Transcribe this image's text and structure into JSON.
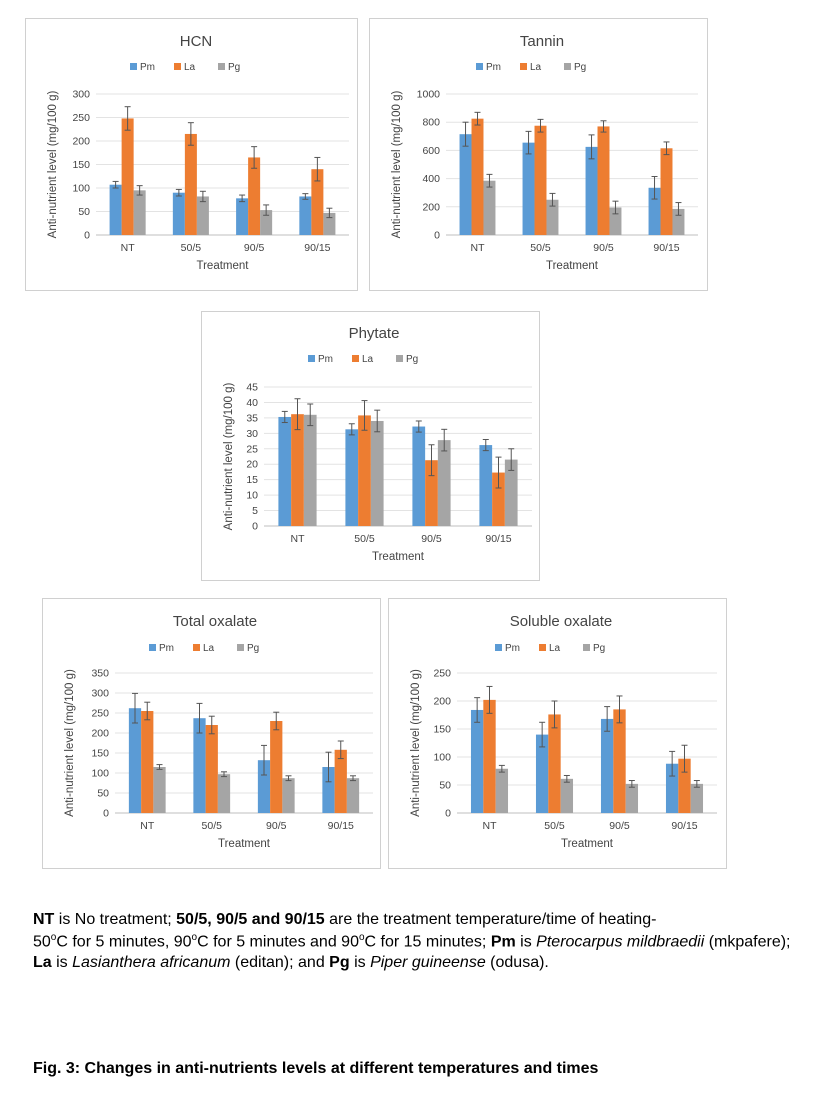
{
  "chart_data": [
    {
      "type": "bar",
      "title": "HCN",
      "xlabel": "Treatment",
      "ylabel": "Anti-nutrient level (mg/100 g)",
      "ylim": [
        0,
        300
      ],
      "yticks": [
        0,
        50,
        100,
        150,
        200,
        250,
        300
      ],
      "categories": [
        "NT",
        "50/5",
        "90/5",
        "90/15"
      ],
      "legend": "top",
      "series": [
        {
          "name": "Pm",
          "values": [
            107,
            90,
            78,
            82
          ],
          "errors": [
            7,
            7,
            7,
            6
          ]
        },
        {
          "name": "La",
          "values": [
            248,
            215,
            165,
            140
          ],
          "errors": [
            25,
            24,
            23,
            25
          ]
        },
        {
          "name": "Pg",
          "values": [
            95,
            82,
            53,
            47
          ],
          "errors": [
            10,
            11,
            11,
            10
          ]
        }
      ]
    },
    {
      "type": "bar",
      "title": "Tannin",
      "xlabel": "Treatment",
      "ylabel": "Anti-nutrient level (mg/100 g)",
      "ylim": [
        0,
        1000
      ],
      "yticks": [
        0,
        200,
        400,
        600,
        800,
        1000
      ],
      "categories": [
        "NT",
        "50/5",
        "90/5",
        "90/15"
      ],
      "legend": "top",
      "series": [
        {
          "name": "Pm",
          "values": [
            715,
            655,
            625,
            335
          ],
          "errors": [
            85,
            80,
            85,
            80
          ]
        },
        {
          "name": "La",
          "values": [
            825,
            775,
            770,
            615
          ],
          "errors": [
            45,
            45,
            40,
            45
          ]
        },
        {
          "name": "Pg",
          "values": [
            385,
            250,
            195,
            185
          ],
          "errors": [
            45,
            45,
            45,
            45
          ]
        }
      ]
    },
    {
      "type": "bar",
      "title": "Phytate",
      "xlabel": "Treatment",
      "ylabel": "Anti-nutrient level (mg/100 g)",
      "ylim": [
        0,
        45
      ],
      "yticks": [
        0,
        5,
        10,
        15,
        20,
        25,
        30,
        35,
        40,
        45
      ],
      "categories": [
        "NT",
        "50/5",
        "90/5",
        "90/15"
      ],
      "legend": "top",
      "series": [
        {
          "name": "Pm",
          "values": [
            35.3,
            31.3,
            32.2,
            26.2
          ],
          "errors": [
            1.8,
            1.8,
            1.8,
            1.8
          ]
        },
        {
          "name": "La",
          "values": [
            36.2,
            35.8,
            21.3,
            17.3
          ],
          "errors": [
            5,
            4.8,
            5,
            5
          ]
        },
        {
          "name": "Pg",
          "values": [
            36,
            34,
            27.8,
            21.5
          ],
          "errors": [
            3.5,
            3.5,
            3.5,
            3.5
          ]
        }
      ]
    },
    {
      "type": "bar",
      "title": "Total oxalate",
      "xlabel": "Treatment",
      "ylabel": "Anti-nutrient level (mg/100 g)",
      "ylim": [
        0,
        350
      ],
      "yticks": [
        0,
        50,
        100,
        150,
        200,
        250,
        300,
        350
      ],
      "categories": [
        "NT",
        "50/5",
        "90/5",
        "90/15"
      ],
      "legend": "top",
      "series": [
        {
          "name": "Pm",
          "values": [
            262,
            237,
            132,
            115
          ],
          "errors": [
            37,
            37,
            37,
            37
          ]
        },
        {
          "name": "La",
          "values": [
            255,
            220,
            230,
            158
          ],
          "errors": [
            22,
            22,
            22,
            22
          ]
        },
        {
          "name": "Pg",
          "values": [
            115,
            97,
            87,
            87
          ],
          "errors": [
            6,
            6,
            6,
            6
          ]
        }
      ]
    },
    {
      "type": "bar",
      "title": "Soluble oxalate",
      "xlabel": "Treatment",
      "ylabel": "Anti-nutrient level (mg/100 g)",
      "ylim": [
        0,
        250
      ],
      "yticks": [
        0,
        50,
        100,
        150,
        200,
        250
      ],
      "categories": [
        "NT",
        "50/5",
        "90/5",
        "90/15"
      ],
      "legend": "top",
      "series": [
        {
          "name": "Pm",
          "values": [
            184,
            140,
            168,
            88
          ],
          "errors": [
            22,
            22,
            22,
            22
          ]
        },
        {
          "name": "La",
          "values": [
            202,
            176,
            185,
            97
          ],
          "errors": [
            24,
            24,
            24,
            24
          ]
        },
        {
          "name": "Pg",
          "values": [
            79,
            61,
            52,
            52
          ],
          "errors": [
            6,
            6,
            6,
            6
          ]
        }
      ]
    }
  ],
  "colors": {
    "Pm": "#5b9bd5",
    "La": "#ed7d31",
    "Pg": "#a5a5a5"
  },
  "caption": {
    "nt_abbr": "NT",
    "nt_def": " is No treatment; ",
    "codes": "50/5, 90/5 and 90/15",
    "codes_def": " are the treatment temperature/time of heating-",
    "line2_a": "50",
    "sup_o_1": "o",
    "line2_b": "C for 5 minutes,  90",
    "sup_o_2": "o",
    "line2_c": "C for 5 minutes and 90",
    "sup_o_3": "o",
    "line2_d": "C for 15 minutes; ",
    "pm_abbr": "Pm",
    "pm_is": " is ",
    "pm_name": "Pterocarpus mildbraedii",
    "pm_local": " (mkpafere); ",
    "la_abbr": "La",
    "la_is": " is ",
    "la_name": "Lasianthera africanum",
    "la_local": " (editan); and  ",
    "pg_abbr": "Pg",
    "pg_is": "   is  ",
    "pg_name": "Piper guineense",
    "pg_local": " (odusa)."
  },
  "figure_title": "Fig. 3: Changes in anti-nutrients levels at different temperatures and times"
}
